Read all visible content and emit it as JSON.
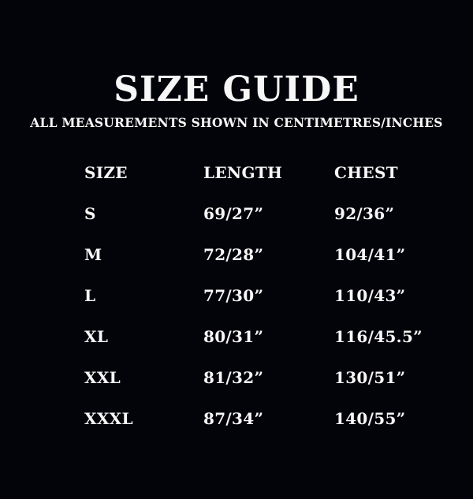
{
  "page": {
    "background_color": "#03030a",
    "text_color": "#f7f7f7"
  },
  "header": {
    "title": "SIZE GUIDE",
    "subtitle": "ALL MEASUREMENTS SHOWN IN CENTIMETRES/INCHES"
  },
  "table": {
    "columns": [
      "SIZE",
      "LENGTH",
      "CHEST"
    ],
    "rows": [
      {
        "size": "S",
        "length": "69/27”",
        "chest": "92/36”"
      },
      {
        "size": "M",
        "length": "72/28”",
        "chest": "104/41”"
      },
      {
        "size": "L",
        "length": "77/30”",
        "chest": "110/43”"
      },
      {
        "size": "XL",
        "length": "80/31”",
        "chest": "116/45.5”"
      },
      {
        "size": "XXL",
        "length": "81/32”",
        "chest": "130/51”"
      },
      {
        "size": "XXXL",
        "length": "87/34”",
        "chest": "140/55”"
      }
    ]
  }
}
